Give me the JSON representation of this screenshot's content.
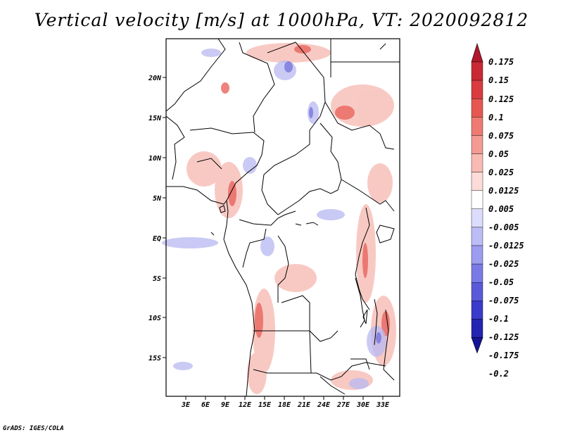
{
  "title": "Vertical velocity [m/s] at 1000hPa, VT: 2020092812",
  "credit": "GrADS: IGES/COLA",
  "map": {
    "lat_labels": [
      "20N",
      "15N",
      "10N",
      "5N",
      "EQ",
      "5S",
      "10S",
      "15S"
    ],
    "lon_labels": [
      "3E",
      "6E",
      "9E",
      "12E",
      "15E",
      "18E",
      "21E",
      "24E",
      "27E",
      "30E",
      "33E"
    ]
  },
  "colorbar": {
    "labels": [
      "0.175",
      "0.15",
      "0.125",
      "0.1",
      "0.075",
      "0.05",
      "0.025",
      "0.0125",
      "0.005",
      "-0.005",
      "-0.0125",
      "-0.025",
      "-0.05",
      "-0.075",
      "-0.1",
      "-0.125",
      "-0.175",
      "-0.2"
    ],
    "colors": [
      "#b2182b",
      "#c82a33",
      "#d93b3f",
      "#e65752",
      "#ee7a72",
      "#f39b93",
      "#f8bbb4",
      "#fcdcd8",
      "#ffffff",
      "#dcdcfc",
      "#bcbcf7",
      "#9c9cf0",
      "#7a7ae6",
      "#5a5ad9",
      "#3a3acb",
      "#2424b3",
      "#141496"
    ]
  }
}
